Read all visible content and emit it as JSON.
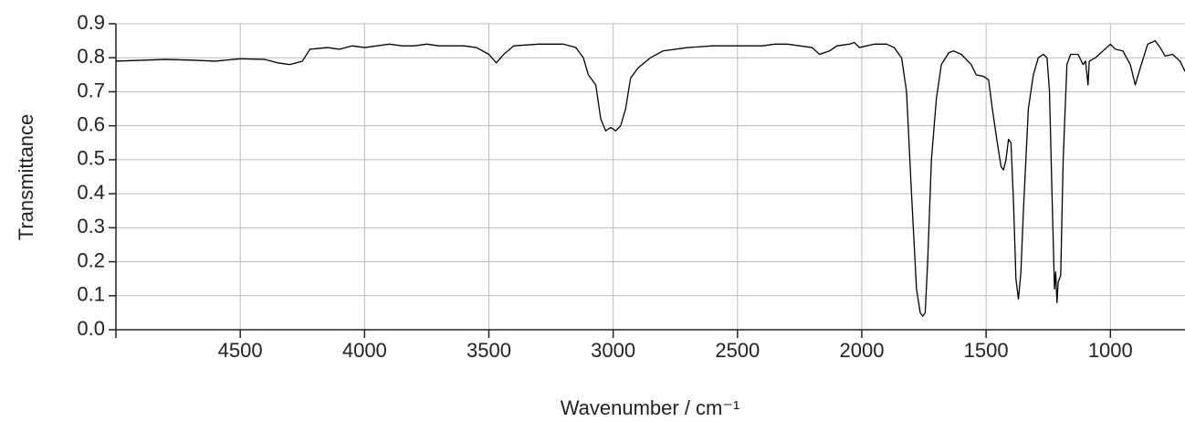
{
  "chart_data": {
    "type": "line",
    "xlabel": "Wavenumber / cm⁻¹",
    "ylabel": "Transmittance",
    "color": "#000000",
    "xlim": [
      5000,
      700
    ],
    "ylim": [
      0,
      0.9
    ],
    "xticks": [
      4500,
      4000,
      3500,
      3000,
      2500,
      2000,
      1500,
      1000
    ],
    "yticks": [
      {
        "value": 0,
        "label": "0.0"
      },
      0.1,
      0.2,
      0.3,
      0.4,
      0.5,
      0.6,
      0.7,
      0.8,
      0.9
    ],
    "grid": true,
    "x": [
      5000,
      4800,
      4700,
      4600,
      4500,
      4400,
      4350,
      4300,
      4250,
      4220,
      4150,
      4100,
      4050,
      4000,
      3950,
      3900,
      3850,
      3800,
      3750,
      3700,
      3600,
      3550,
      3500,
      3470,
      3440,
      3400,
      3300,
      3200,
      3150,
      3120,
      3100,
      3070,
      3050,
      3030,
      3010,
      2990,
      2970,
      2950,
      2930,
      2900,
      2850,
      2800,
      2700,
      2600,
      2500,
      2400,
      2350,
      2300,
      2250,
      2200,
      2170,
      2130,
      2100,
      2050,
      2030,
      2010,
      1980,
      1950,
      1900,
      1870,
      1840,
      1820,
      1800,
      1780,
      1765,
      1755,
      1745,
      1735,
      1720,
      1700,
      1680,
      1650,
      1630,
      1600,
      1560,
      1540,
      1510,
      1490,
      1475,
      1455,
      1440,
      1430,
      1420,
      1410,
      1400,
      1390,
      1380,
      1370,
      1360,
      1350,
      1330,
      1310,
      1290,
      1270,
      1255,
      1245,
      1235,
      1225,
      1220,
      1215,
      1210,
      1200,
      1190,
      1175,
      1160,
      1130,
      1110,
      1100,
      1090,
      1085,
      1060,
      1000,
      980,
      950,
      920,
      900,
      880,
      850,
      820,
      800,
      780,
      750,
      720,
      700
    ],
    "values": [
      0.79,
      0.795,
      0.793,
      0.79,
      0.797,
      0.795,
      0.785,
      0.78,
      0.79,
      0.825,
      0.83,
      0.825,
      0.835,
      0.83,
      0.835,
      0.84,
      0.835,
      0.835,
      0.84,
      0.835,
      0.835,
      0.83,
      0.81,
      0.785,
      0.81,
      0.835,
      0.84,
      0.84,
      0.83,
      0.8,
      0.75,
      0.72,
      0.62,
      0.585,
      0.595,
      0.585,
      0.6,
      0.65,
      0.74,
      0.77,
      0.8,
      0.82,
      0.83,
      0.835,
      0.835,
      0.835,
      0.84,
      0.84,
      0.835,
      0.83,
      0.81,
      0.82,
      0.835,
      0.84,
      0.845,
      0.83,
      0.835,
      0.84,
      0.84,
      0.83,
      0.8,
      0.7,
      0.4,
      0.12,
      0.05,
      0.04,
      0.05,
      0.2,
      0.5,
      0.68,
      0.78,
      0.815,
      0.82,
      0.81,
      0.78,
      0.75,
      0.745,
      0.735,
      0.65,
      0.55,
      0.48,
      0.47,
      0.5,
      0.56,
      0.55,
      0.38,
      0.15,
      0.09,
      0.17,
      0.35,
      0.65,
      0.75,
      0.8,
      0.81,
      0.8,
      0.7,
      0.4,
      0.12,
      0.17,
      0.08,
      0.14,
      0.16,
      0.5,
      0.78,
      0.81,
      0.81,
      0.78,
      0.79,
      0.72,
      0.79,
      0.8,
      0.84,
      0.825,
      0.82,
      0.78,
      0.72,
      0.77,
      0.84,
      0.85,
      0.83,
      0.805,
      0.81,
      0.79,
      0.76
    ]
  }
}
